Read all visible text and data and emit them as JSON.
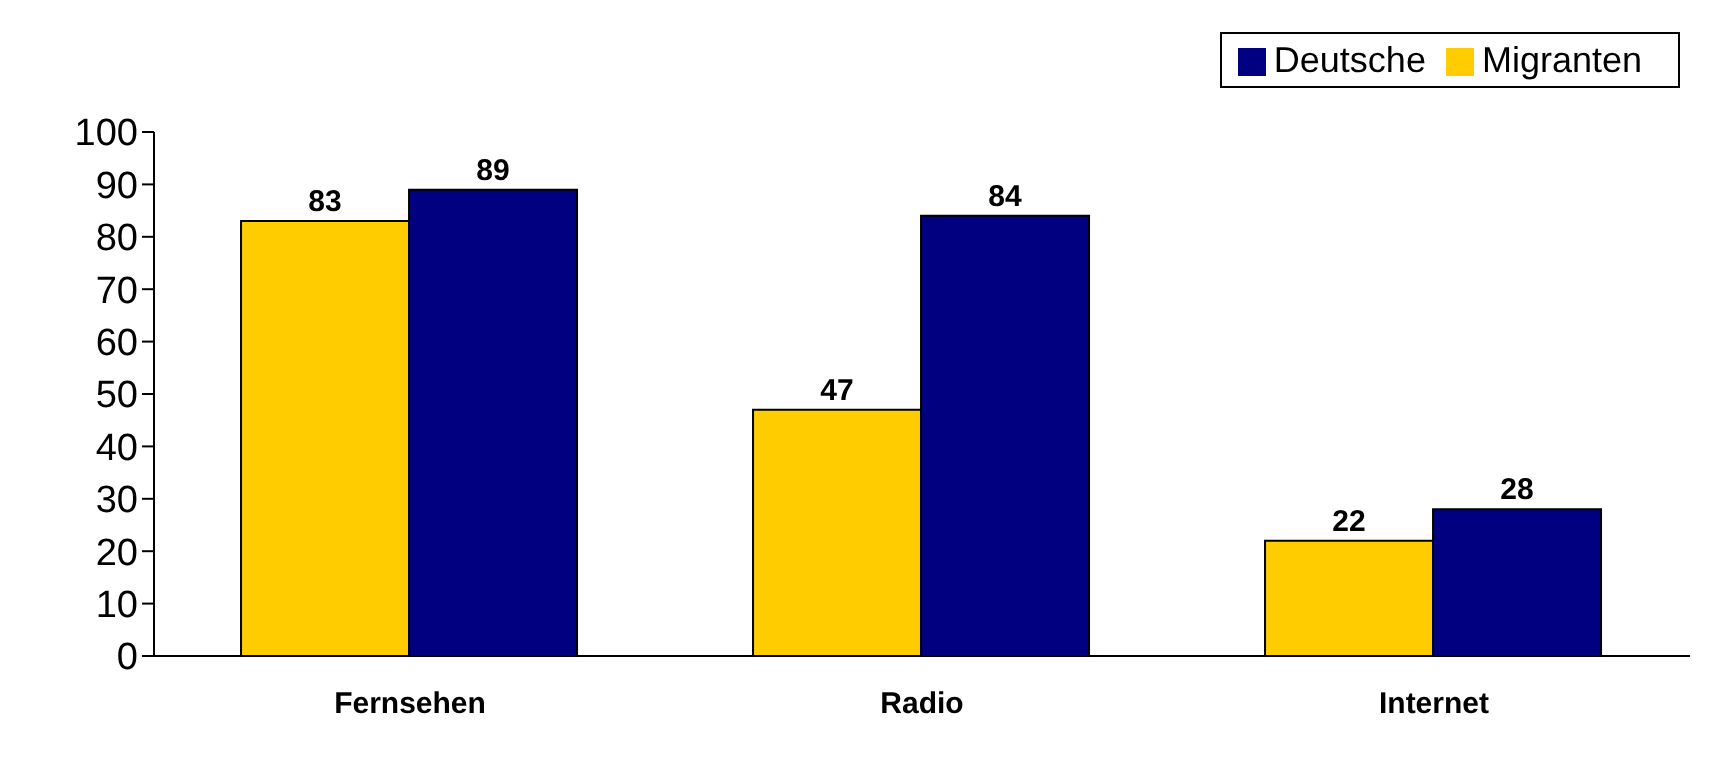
{
  "chart_data": {
    "type": "bar",
    "categories": [
      "Fernsehen",
      "Radio",
      "Internet"
    ],
    "series": [
      {
        "name": "Migranten",
        "color": "#ffcc00",
        "values": [
          83,
          47,
          22
        ]
      },
      {
        "name": "Deutsche",
        "color": "#000080",
        "values": [
          89,
          84,
          28
        ]
      }
    ],
    "ylim": [
      0,
      100
    ],
    "yticks": [
      0,
      10,
      20,
      30,
      40,
      50,
      60,
      70,
      80,
      90,
      100
    ],
    "grid": false,
    "legend": "top right",
    "data_labels": true
  }
}
